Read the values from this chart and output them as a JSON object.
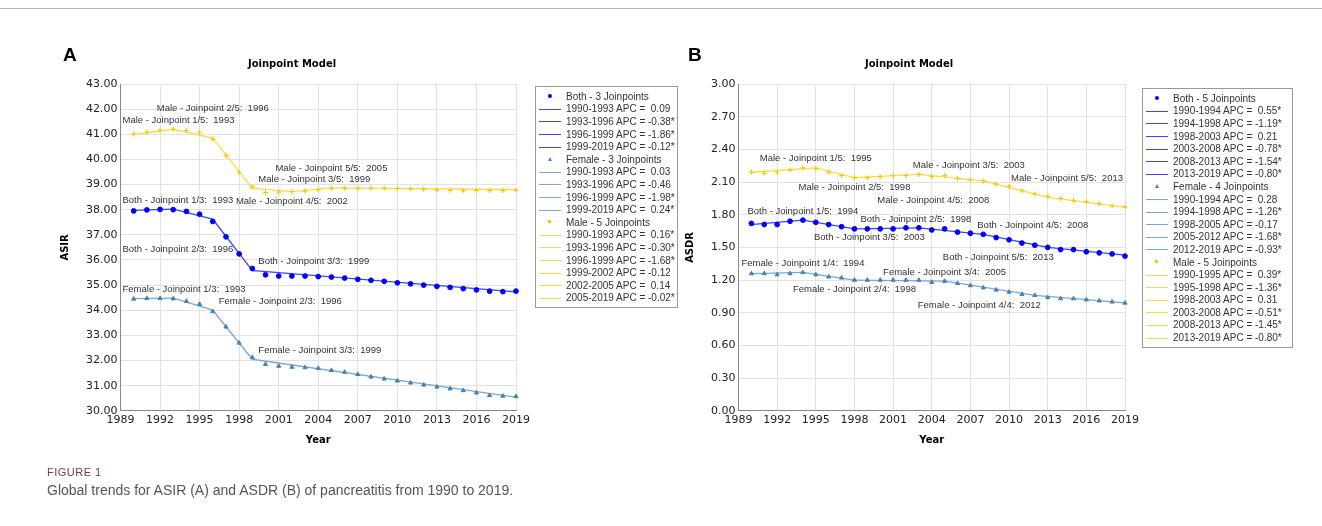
{
  "chart_data": [
    {
      "type": "line",
      "title": "Joinpoint Model",
      "xlabel": "Year",
      "ylabel": "ASIR",
      "grid": true,
      "legend": "right",
      "xlim": [
        1989,
        2019
      ],
      "xticks": [
        1989,
        1992,
        1995,
        1998,
        2001,
        2004,
        2007,
        2010,
        2013,
        2016,
        2019
      ],
      "ylim": [
        30,
        43
      ],
      "yticks": [
        {
          "value": 30,
          "label": "30.00"
        },
        {
          "value": 31,
          "label": "31.00"
        },
        {
          "value": 32,
          "label": "32.00"
        },
        {
          "value": 33,
          "label": "33.00"
        },
        {
          "value": 34,
          "label": "34.00"
        },
        {
          "value": 35,
          "label": "35.00"
        },
        {
          "value": 36,
          "label": "36.00"
        },
        {
          "value": 37,
          "label": "37.00"
        },
        {
          "value": 38,
          "label": "38.00"
        },
        {
          "value": 39,
          "label": "39.00"
        },
        {
          "value": 40,
          "label": "40.00"
        },
        {
          "value": 41,
          "label": "41.00"
        },
        {
          "value": 42,
          "label": "42.00"
        },
        {
          "value": 43,
          "label": "43.00"
        }
      ],
      "x": [
        1990,
        1991,
        1992,
        1993,
        1994,
        1995,
        1996,
        1997,
        1998,
        1999,
        2000,
        2001,
        2002,
        2003,
        2004,
        2005,
        2006,
        2007,
        2008,
        2009,
        2010,
        2011,
        2012,
        2013,
        2014,
        2015,
        2016,
        2017,
        2018,
        2019
      ],
      "series": [
        {
          "name": "Both - 3 Joinpoints",
          "type": "scatter",
          "marker": "circle",
          "color": "#0000ff",
          "values": [
            37.95,
            37.99,
            38.01,
            38.0,
            37.93,
            37.82,
            37.53,
            36.92,
            36.24,
            35.66,
            35.41,
            35.36,
            35.36,
            35.36,
            35.34,
            35.32,
            35.28,
            35.23,
            35.19,
            35.15,
            35.09,
            35.05,
            35.0,
            34.95,
            34.91,
            34.86,
            34.81,
            34.76,
            34.74,
            34.76
          ]
        },
        {
          "name": "1990-1993 APC =  0.09",
          "color": "#4040ff",
          "x": [
            1990,
            1993
          ],
          "values": [
            37.97,
            38.02
          ]
        },
        {
          "name": "1993-1996 APC = -0.38*",
          "color": "#4040ff",
          "x": [
            1993,
            1996
          ],
          "values": [
            38.02,
            37.62
          ]
        },
        {
          "name": "1996-1999 APC = -1.86*",
          "color": "#4040ff",
          "x": [
            1996,
            1999
          ],
          "values": [
            37.62,
            35.58
          ]
        },
        {
          "name": "1999-2019 APC = -0.12*",
          "color": "#4040ff",
          "x": [
            1999,
            2019
          ],
          "values": [
            35.58,
            34.73
          ]
        },
        {
          "name": "Female - 3 Joinpoints",
          "type": "scatter",
          "marker": "triangle",
          "color": "#4682b4",
          "values": [
            34.45,
            34.47,
            34.47,
            34.46,
            34.36,
            34.24,
            33.95,
            33.34,
            32.7,
            32.12,
            31.85,
            31.78,
            31.74,
            31.72,
            31.69,
            31.61,
            31.54,
            31.45,
            31.35,
            31.27,
            31.19,
            31.11,
            31.03,
            30.95,
            30.88,
            30.81,
            30.72,
            30.61,
            30.59,
            30.57
          ]
        },
        {
          "name": "1990-1993 APC =  0.03",
          "color": "#7aa7d6",
          "x": [
            1990,
            1993
          ],
          "values": [
            34.46,
            34.48
          ]
        },
        {
          "name": "1993-1996 APC = -0.46",
          "color": "#7aa7d6",
          "x": [
            1993,
            1996
          ],
          "values": [
            34.48,
            34.0
          ]
        },
        {
          "name": "1996-1999 APC = -1.98*",
          "color": "#7aa7d6",
          "x": [
            1996,
            1999
          ],
          "values": [
            34.0,
            32.05
          ]
        },
        {
          "name": "1999-2019 APC =  0.24*",
          "color": "#7aa7d6",
          "x": [
            1999,
            2019
          ],
          "values": [
            32.05,
            30.54
          ]
        },
        {
          "name": "Male - 5 Joinpoints",
          "type": "scatter",
          "marker": "cross",
          "color": "#f5c800",
          "values": [
            41.01,
            41.09,
            41.16,
            41.2,
            41.15,
            41.08,
            40.81,
            40.16,
            39.49,
            38.91,
            38.68,
            38.7,
            38.72,
            38.74,
            38.8,
            38.85,
            38.85,
            38.85,
            38.85,
            38.85,
            38.84,
            38.83,
            38.81,
            38.78,
            38.77,
            38.76,
            38.76,
            38.76,
            38.76,
            38.78
          ]
        },
        {
          "name": "1990-1993 APC =  0.16*",
          "color": "#ffd84a",
          "x": [
            1990,
            1993
          ],
          "values": [
            41.0,
            41.2
          ]
        },
        {
          "name": "1993-1996 APC = -0.30*",
          "color": "#ffd84a",
          "x": [
            1993,
            1996
          ],
          "values": [
            41.2,
            40.85
          ]
        },
        {
          "name": "1996-1999 APC = -1.68*",
          "color": "#ffd84a",
          "x": [
            1996,
            1999
          ],
          "values": [
            40.85,
            38.85
          ]
        },
        {
          "name": "1999-2002 APC = -0.12",
          "color": "#ffd84a",
          "x": [
            1999,
            2002
          ],
          "values": [
            38.85,
            38.72
          ]
        },
        {
          "name": "2002-2005 APC =  0.14",
          "color": "#ffd84a",
          "x": [
            2002,
            2005
          ],
          "values": [
            38.72,
            38.87
          ]
        },
        {
          "name": "2005-2019 APC = -0.02*",
          "color": "#ffd84a",
          "x": [
            2005,
            2019
          ],
          "values": [
            38.87,
            38.8
          ]
        }
      ],
      "annotations": [
        "A",
        "FIGURE 1",
        "Global trends for ASIR (A) and ASDR (B) of pancreatitis from 1990 to 2019.",
        {
          "text": "Male - Joinpoint 1/5:  1993",
          "x": 1993,
          "y": 41.2
        },
        {
          "text": "Male - Joinpoint 2/5:  1996",
          "x": 1996,
          "y": 40.85
        },
        {
          "text": "Male - Joinpoint 3/5:  1999",
          "x": 1999,
          "y": 38.85
        },
        {
          "text": "Male - Joinpoint 4/5:  2002",
          "x": 2002,
          "y": 38.72
        },
        {
          "text": "Male - Joinpoint 5/5:  2005",
          "x": 2005,
          "y": 38.87
        },
        {
          "text": "Both - Joinpoint 1/3:  1993",
          "x": 1993,
          "y": 38.02
        },
        {
          "text": "Both - Joinpoint 2/3:  1996",
          "x": 1996,
          "y": 37.62
        },
        {
          "text": "Both - Joinpoint 3/3:  1999",
          "x": 1999,
          "y": 35.58
        },
        {
          "text": "Female - Joinpoint 1/3:  1993",
          "x": 1993,
          "y": 34.48
        },
        {
          "text": "Female - Joinpoint 2/3:  1996",
          "x": 1996,
          "y": 34.0
        },
        {
          "text": "Female - Joinpoint 3/3:  1999",
          "x": 1999,
          "y": 32.05
        }
      ]
    },
    {
      "type": "line",
      "title": "Joinpoint Model",
      "xlabel": "Year",
      "ylabel": "ASDR",
      "grid": true,
      "legend": "right",
      "xlim": [
        1989,
        2019
      ],
      "xticks": [
        1989,
        1992,
        1995,
        1998,
        2001,
        2004,
        2007,
        2010,
        2013,
        2016,
        2019
      ],
      "ylim": [
        0,
        3
      ],
      "yticks": [
        {
          "value": 0,
          "label": "0.00"
        },
        {
          "value": 0.3,
          "label": "0.30"
        },
        {
          "value": 0.6,
          "label": "0.60"
        },
        {
          "value": 0.9,
          "label": "0.90"
        },
        {
          "value": 1.2,
          "label": "1.20"
        },
        {
          "value": 1.5,
          "label": "1.50"
        },
        {
          "value": 1.8,
          "label": "1.80"
        },
        {
          "value": 2.1,
          "label": "2.10"
        },
        {
          "value": 2.4,
          "label": "2.40"
        },
        {
          "value": 2.7,
          "label": "2.70"
        },
        {
          "value": 3,
          "label": "3.00"
        }
      ],
      "x": [
        1990,
        1991,
        1992,
        1993,
        1994,
        1995,
        1996,
        1997,
        1998,
        1999,
        2000,
        2001,
        2002,
        2003,
        2004,
        2005,
        2006,
        2007,
        2008,
        2009,
        2010,
        2011,
        2012,
        2013,
        2014,
        2015,
        2016,
        2017,
        2018,
        2019
      ],
      "series": [
        {
          "name": "Both - 5 Joinpoints",
          "type": "scatter",
          "marker": "circle",
          "color": "#0000ff",
          "values": [
            1.72,
            1.71,
            1.71,
            1.74,
            1.75,
            1.73,
            1.71,
            1.69,
            1.67,
            1.67,
            1.67,
            1.67,
            1.68,
            1.68,
            1.66,
            1.67,
            1.64,
            1.63,
            1.62,
            1.59,
            1.57,
            1.54,
            1.52,
            1.5,
            1.48,
            1.48,
            1.46,
            1.45,
            1.44,
            1.42
          ]
        },
        {
          "name": "1990-1994 APC =  0.55*",
          "color": "#4040ff",
          "x": [
            1990,
            1994
          ],
          "values": [
            1.71,
            1.75
          ]
        },
        {
          "name": "1994-1998 APC = -1.19*",
          "color": "#4040ff",
          "x": [
            1994,
            1998
          ],
          "values": [
            1.75,
            1.67
          ]
        },
        {
          "name": "1998-2003 APC =  0.21",
          "color": "#4040ff",
          "x": [
            1998,
            2003
          ],
          "values": [
            1.67,
            1.68
          ]
        },
        {
          "name": "2003-2008 APC = -0.78*",
          "color": "#4040ff",
          "x": [
            2003,
            2008
          ],
          "values": [
            1.68,
            1.62
          ]
        },
        {
          "name": "2008-2013 APC = -1.54*",
          "color": "#4040ff",
          "x": [
            2008,
            2013
          ],
          "values": [
            1.62,
            1.5
          ]
        },
        {
          "name": "2013-2019 APC = -0.80*",
          "color": "#4040ff",
          "x": [
            2013,
            2019
          ],
          "values": [
            1.5,
            1.43
          ]
        },
        {
          "name": "Female - 4 Joinpoints",
          "type": "scatter",
          "marker": "triangle",
          "color": "#4682b4",
          "values": [
            1.26,
            1.26,
            1.25,
            1.26,
            1.27,
            1.25,
            1.23,
            1.22,
            1.2,
            1.2,
            1.2,
            1.2,
            1.2,
            1.2,
            1.18,
            1.19,
            1.17,
            1.15,
            1.13,
            1.11,
            1.09,
            1.07,
            1.06,
            1.04,
            1.03,
            1.03,
            1.02,
            1.01,
            1.0,
            0.99
          ]
        },
        {
          "name": "1990-1994 APC =  0.28",
          "color": "#7aa7d6",
          "x": [
            1990,
            1994
          ],
          "values": [
            1.26,
            1.27
          ]
        },
        {
          "name": "1994-1998 APC = -1.26*",
          "color": "#7aa7d6",
          "x": [
            1994,
            1998
          ],
          "values": [
            1.27,
            1.2
          ]
        },
        {
          "name": "1998-2005 APC = -0.17",
          "color": "#7aa7d6",
          "x": [
            1998,
            2005
          ],
          "values": [
            1.2,
            1.19
          ]
        },
        {
          "name": "2005-2012 APC = -1.68*",
          "color": "#7aa7d6",
          "x": [
            2005,
            2012
          ],
          "values": [
            1.19,
            1.06
          ]
        },
        {
          "name": "2012-2019 APC = -0.93*",
          "color": "#7aa7d6",
          "x": [
            2012,
            2019
          ],
          "values": [
            1.06,
            0.99
          ]
        },
        {
          "name": "Male - 5 Joinpoints",
          "type": "scatter",
          "marker": "cross",
          "color": "#f5c800",
          "values": [
            2.19,
            2.18,
            2.19,
            2.21,
            2.23,
            2.22,
            2.19,
            2.16,
            2.14,
            2.14,
            2.15,
            2.16,
            2.16,
            2.17,
            2.15,
            2.16,
            2.13,
            2.12,
            2.11,
            2.08,
            2.06,
            2.02,
            1.99,
            1.97,
            1.95,
            1.93,
            1.92,
            1.9,
            1.88,
            1.87
          ]
        },
        {
          "name": "1990-1995 APC =  0.39*",
          "color": "#ffd84a",
          "x": [
            1990,
            1995
          ],
          "values": [
            2.19,
            2.23
          ]
        },
        {
          "name": "1995-1998 APC = -1.36*",
          "color": "#ffd84a",
          "x": [
            1995,
            1998
          ],
          "values": [
            2.23,
            2.14
          ]
        },
        {
          "name": "1998-2003 APC =  0.31",
          "color": "#ffd84a",
          "x": [
            1998,
            2003
          ],
          "values": [
            2.14,
            2.17
          ]
        },
        {
          "name": "2003-2008 APC = -0.51*",
          "color": "#ffd84a",
          "x": [
            2003,
            2008
          ],
          "values": [
            2.17,
            2.11
          ]
        },
        {
          "name": "2008-2013 APC = -1.45*",
          "color": "#ffd84a",
          "x": [
            2008,
            2013
          ],
          "values": [
            2.11,
            1.96
          ]
        },
        {
          "name": "2013-2019 APC = -0.80*",
          "color": "#ffd84a",
          "x": [
            2013,
            2019
          ],
          "values": [
            1.96,
            1.87
          ]
        }
      ],
      "annotations": [
        "B",
        {
          "text": "Male - Joinpoint 1/5:  1995",
          "x": 1995,
          "y": 2.23
        },
        {
          "text": "Male - Joinpoint 2/5:  1998",
          "x": 1998,
          "y": 2.14
        },
        {
          "text": "Male - Joinpoint 3/5:  2003",
          "x": 2003,
          "y": 2.17
        },
        {
          "text": "Male - Joinpoint 4/5:  2008",
          "x": 2008,
          "y": 2.11
        },
        {
          "text": "Male - Joinpoint 5/5:  2013",
          "x": 2013,
          "y": 1.96
        },
        {
          "text": "Both - Joinpoint 1/5:  1994",
          "x": 1994,
          "y": 1.75
        },
        {
          "text": "Both - Joinpoint 2/5:  1998",
          "x": 1998,
          "y": 1.67
        },
        {
          "text": "Both - Joinpoint 3/5:  2003",
          "x": 2003,
          "y": 1.68
        },
        {
          "text": "Both - Joinpoint 4/5:  2008",
          "x": 2008,
          "y": 1.62
        },
        {
          "text": "Both - Joinpoint 5/5:  2013",
          "x": 2013,
          "y": 1.5
        },
        {
          "text": "Female - Joinpoint 1/4:  1994",
          "x": 1994,
          "y": 1.27
        },
        {
          "text": "Female - Joinpoint 2/4:  1998",
          "x": 1998,
          "y": 1.2
        },
        {
          "text": "Female - Joinpoint 3/4:  2005",
          "x": 2005,
          "y": 1.19
        },
        {
          "text": "Female - Joinpoint 4/4:  2012",
          "x": 2012,
          "y": 1.06
        }
      ]
    }
  ]
}
